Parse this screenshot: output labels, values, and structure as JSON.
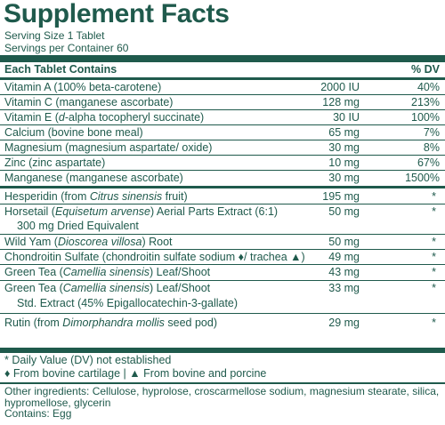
{
  "label": {
    "title": "Supplement Facts",
    "serving_size": "Serving Size 1 Tablet",
    "servings_per_container": "Servings per Container 60",
    "header_left": "Each Tablet Contains",
    "header_dv": "% DV"
  },
  "rows": [
    {
      "name_a": "Vitamin A (100% beta-carotene)",
      "name_i": "",
      "name_b": "",
      "amount": "2000 IU",
      "dv": "40%"
    },
    {
      "name_a": "Vitamin C (manganese ascorbate)",
      "name_i": "",
      "name_b": "",
      "amount": "128 mg",
      "dv": "213%"
    },
    {
      "name_a": "Vitamin E (",
      "name_i": "d",
      "name_b": "-alpha tocopheryl succinate)",
      "amount": "30 IU",
      "dv": "100%"
    },
    {
      "name_a": "Calcium (bovine bone meal)",
      "name_i": "",
      "name_b": "",
      "amount": "65 mg",
      "dv": "7%"
    },
    {
      "name_a": "Magnesium (magnesium aspartate/ oxide)",
      "name_i": "",
      "name_b": "",
      "amount": "30 mg",
      "dv": "8%"
    },
    {
      "name_a": "Zinc (zinc aspartate)",
      "name_i": "",
      "name_b": "",
      "amount": "10 mg",
      "dv": "67%"
    },
    {
      "name_a": "Manganese (manganese ascorbate)",
      "name_i": "",
      "name_b": "",
      "amount": "30 mg",
      "dv": "1500%"
    },
    {
      "name_a": "Hesperidin (from ",
      "name_i": "Citrus sinensis",
      "name_b": " fruit)",
      "amount": "195 mg",
      "dv": "*"
    },
    {
      "name_a": "Horsetail (",
      "name_i": "Equisetum arvense",
      "name_b": ") Aerial Parts Extract (6:1)",
      "amount": "50 mg",
      "dv": "*"
    },
    {
      "name_a": "300 mg Dried Equivalent",
      "name_i": "",
      "name_b": "",
      "amount": "",
      "dv": ""
    },
    {
      "name_a": "Wild Yam (",
      "name_i": "Dioscorea villosa",
      "name_b": ") Root",
      "amount": "50 mg",
      "dv": "*"
    },
    {
      "name_a": "Chondroitin Sulfate (chondroitin sulfate sodium ♦/ trachea ▲)",
      "name_i": "",
      "name_b": "",
      "amount": "49 mg",
      "dv": "*"
    },
    {
      "name_a": "Green Tea (",
      "name_i": "Camellia sinensis",
      "name_b": ") Leaf/Shoot",
      "amount": "43 mg",
      "dv": "*"
    },
    {
      "name_a": "Green Tea (",
      "name_i": "Camellia sinensis",
      "name_b": ") Leaf/Shoot",
      "amount": "33 mg",
      "dv": "*"
    },
    {
      "name_a": "Std. Extract (45% Epigallocatechin-3-gallate)",
      "name_i": "",
      "name_b": "",
      "amount": "",
      "dv": ""
    },
    {
      "name_a": "Rutin (from ",
      "name_i": "Dimorphandra mollis",
      "name_b": " seed pod)",
      "amount": "29 mg",
      "dv": "*"
    }
  ],
  "footnotes": {
    "dv_note": "* Daily Value (DV) not established",
    "source_note": "♦ From bovine cartilage | ▲ From bovine and porcine"
  },
  "other": {
    "ingredients": "Other ingredients: Cellulose, hyprolose, croscarmellose sodium, magnesium stearate, silica, hypromellose, glycerin",
    "contains": "Contains: Egg"
  },
  "colors": {
    "text": "#1f5a4c",
    "background": "#ffffff"
  }
}
